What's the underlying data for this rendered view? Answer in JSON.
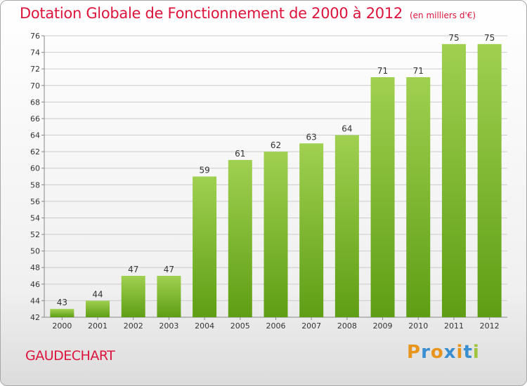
{
  "title": "Dotation Globale de Fonctionnement de 2000 à 2012",
  "title_unit": "(en milliers d'€)",
  "commune": "GAUDECHART",
  "logo": {
    "letters": [
      "P",
      "r",
      "o",
      "x",
      "i",
      "t",
      "i"
    ],
    "colors": [
      "#e8951e",
      "#3a8fd0",
      "#e8951e",
      "#3a8fd0",
      "#e8951e",
      "#3a8fd0",
      "#a0c43c"
    ]
  },
  "colors": {
    "title": "#dc143c",
    "bar_top": "#a0d050",
    "bar_bottom": "#5e9e14",
    "grid": "#cccccc"
  },
  "chart_data": {
    "type": "bar",
    "title": "Dotation Globale de Fonctionnement de 2000 à 2012",
    "unit": "(en milliers d'€)",
    "categories": [
      "2000",
      "2001",
      "2002",
      "2003",
      "2004",
      "2005",
      "2006",
      "2007",
      "2008",
      "2009",
      "2010",
      "2011",
      "2012"
    ],
    "values": [
      43,
      44,
      47,
      47,
      59,
      61,
      62,
      63,
      64,
      71,
      71,
      75,
      75
    ],
    "ylim": [
      42,
      76
    ],
    "yticks": [
      42,
      44,
      46,
      48,
      50,
      52,
      54,
      56,
      58,
      60,
      62,
      64,
      66,
      68,
      70,
      72,
      74,
      76
    ],
    "xlabel": "",
    "ylabel": "",
    "grid": true
  }
}
